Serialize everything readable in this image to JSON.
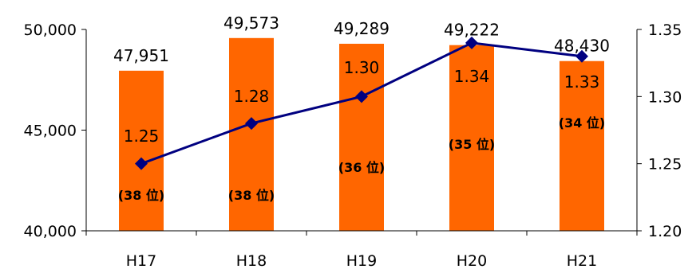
{
  "chart_data": {
    "type": "bar",
    "categories": [
      "H17",
      "H18",
      "H19",
      "H20",
      "H21"
    ],
    "series": [
      {
        "type": "bar",
        "axis": "left",
        "values": [
          47951,
          49573,
          49289,
          49222,
          48430
        ],
        "labels": [
          "47,951",
          "49,573",
          "49,289",
          "49,222",
          "48,430"
        ],
        "color": "#ff6600"
      },
      {
        "type": "line",
        "axis": "right",
        "values": [
          1.25,
          1.28,
          1.3,
          1.34,
          1.33
        ],
        "labels": [
          "1.25",
          "1.28",
          "1.30",
          "1.34",
          "1.33"
        ],
        "color": "#000080",
        "marker": "diamond"
      }
    ],
    "rank_labels": [
      "(38 位)",
      "(38 位)",
      "(36 位)",
      "(35 位)",
      "(34 位)"
    ],
    "y_left": {
      "range": [
        40000,
        50000
      ],
      "ticks": [
        "40,000",
        "45,000",
        "50,000"
      ]
    },
    "y_right": {
      "range": [
        1.2,
        1.35
      ],
      "ticks": [
        "1.20",
        "1.25",
        "1.30",
        "1.35"
      ]
    },
    "grid": false,
    "legend": "none"
  }
}
